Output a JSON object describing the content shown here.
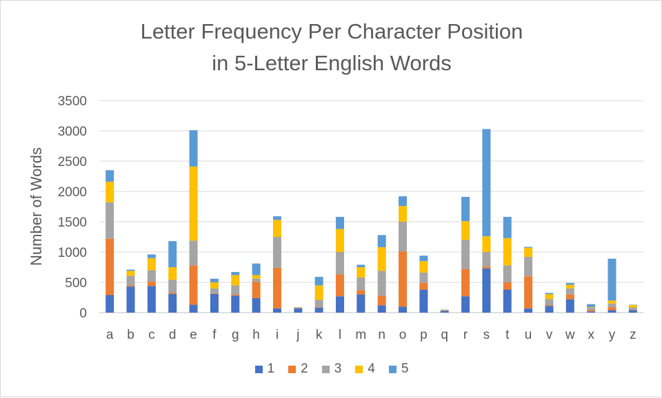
{
  "title_line1": "Letter Frequency Per Character Position",
  "title_line2": "in 5-Letter English Words",
  "chart_data": {
    "type": "bar",
    "stacked": true,
    "title": "Letter Frequency Per Character Position in 5-Letter English Words",
    "xlabel": "",
    "ylabel": "Number of Words",
    "ylim": [
      0,
      3500
    ],
    "yticks": [
      0,
      500,
      1000,
      1500,
      2000,
      2500,
      3000,
      3500
    ],
    "grid": true,
    "legend_position": "bottom",
    "categories": [
      "a",
      "b",
      "c",
      "d",
      "e",
      "f",
      "g",
      "h",
      "i",
      "j",
      "k",
      "l",
      "m",
      "n",
      "o",
      "p",
      "q",
      "r",
      "s",
      "t",
      "u",
      "v",
      "w",
      "x",
      "y",
      "z"
    ],
    "series": [
      {
        "name": "1",
        "color": "#4472c4",
        "values": [
          290,
          430,
          440,
          310,
          130,
          310,
          280,
          240,
          70,
          70,
          80,
          270,
          300,
          120,
          100,
          380,
          30,
          270,
          730,
          380,
          70,
          110,
          220,
          20,
          40,
          40
        ]
      },
      {
        "name": "2",
        "color": "#ed7d31",
        "values": [
          930,
          20,
          70,
          20,
          650,
          10,
          20,
          270,
          670,
          5,
          10,
          360,
          70,
          160,
          910,
          110,
          5,
          450,
          30,
          120,
          530,
          15,
          80,
          20,
          50,
          5
        ]
      },
      {
        "name": "3",
        "color": "#a5a5a5",
        "values": [
          600,
          160,
          190,
          210,
          410,
          80,
          150,
          50,
          510,
          5,
          120,
          370,
          210,
          410,
          490,
          170,
          5,
          480,
          240,
          280,
          320,
          100,
          100,
          40,
          60,
          40
        ]
      },
      {
        "name": "4",
        "color": "#ffc000",
        "values": [
          340,
          80,
          200,
          210,
          1220,
          100,
          170,
          60,
          280,
          5,
          240,
          380,
          170,
          390,
          260,
          190,
          5,
          310,
          260,
          450,
          150,
          80,
          60,
          10,
          50,
          40
        ]
      },
      {
        "name": "5",
        "color": "#5b9bd5",
        "values": [
          190,
          20,
          60,
          430,
          600,
          60,
          50,
          190,
          60,
          5,
          140,
          200,
          40,
          200,
          160,
          90,
          5,
          400,
          1770,
          350,
          15,
          20,
          30,
          50,
          690,
          5
        ]
      }
    ]
  }
}
